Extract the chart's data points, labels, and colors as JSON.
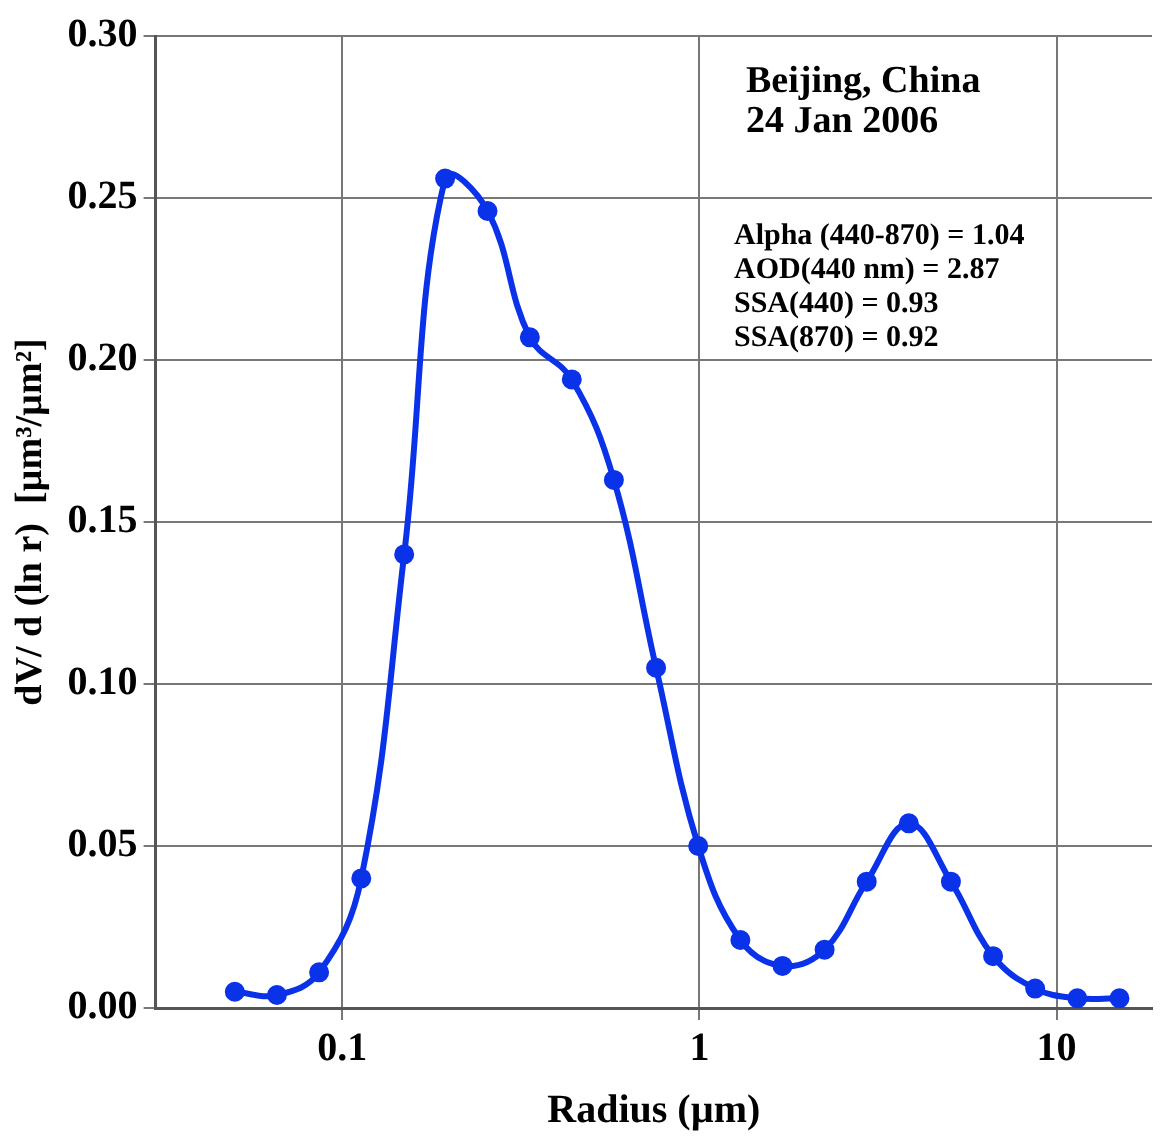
{
  "chart_data": {
    "type": "line",
    "xlabel": "Radius (µm)",
    "ylabel": "dV/ d (ln r)  [µm³/µm²]",
    "x": [
      0.05,
      0.0656,
      0.0861,
      0.113,
      0.149,
      0.194,
      0.255,
      0.335,
      0.439,
      0.576,
      0.756,
      0.992,
      1.302,
      1.708,
      2.241,
      2.94,
      3.857,
      5.06,
      6.64,
      8.71,
      11.43,
      15.0
    ],
    "series": [
      {
        "color": "#0a32e8",
        "values": [
          0.005,
          0.004,
          0.011,
          0.04,
          0.14,
          0.256,
          0.246,
          0.207,
          0.194,
          0.163,
          0.105,
          0.05,
          0.021,
          0.013,
          0.018,
          0.039,
          0.057,
          0.039,
          0.016,
          0.006,
          0.003,
          0.003
        ]
      }
    ],
    "log": "x",
    "xlim": [
      0.03,
      18.5
    ],
    "xticks": [
      0.1,
      1,
      10
    ],
    "ylim": [
      0,
      0.3
    ],
    "yticks": [
      {
        "value": 0,
        "label": "0.00"
      },
      {
        "value": 0.05,
        "label": "0.05"
      },
      {
        "value": 0.1,
        "label": "0.10"
      },
      {
        "value": 0.15,
        "label": "0.15"
      },
      {
        "value": 0.2,
        "label": "0.20"
      },
      {
        "value": 0.25,
        "label": "0.25"
      },
      {
        "value": 0.3,
        "label": "0.30"
      }
    ],
    "grid": true,
    "legend": false,
    "marker": "circle",
    "line_style": "solid",
    "annotations": [
      "Beijing, China",
      "24 Jan 2006",
      "Alpha (440-870) = 1.04",
      "AOD(440 nm) = 2.87",
      "SSA(440) = 0.93",
      "SSA(870) = 0.92"
    ]
  }
}
